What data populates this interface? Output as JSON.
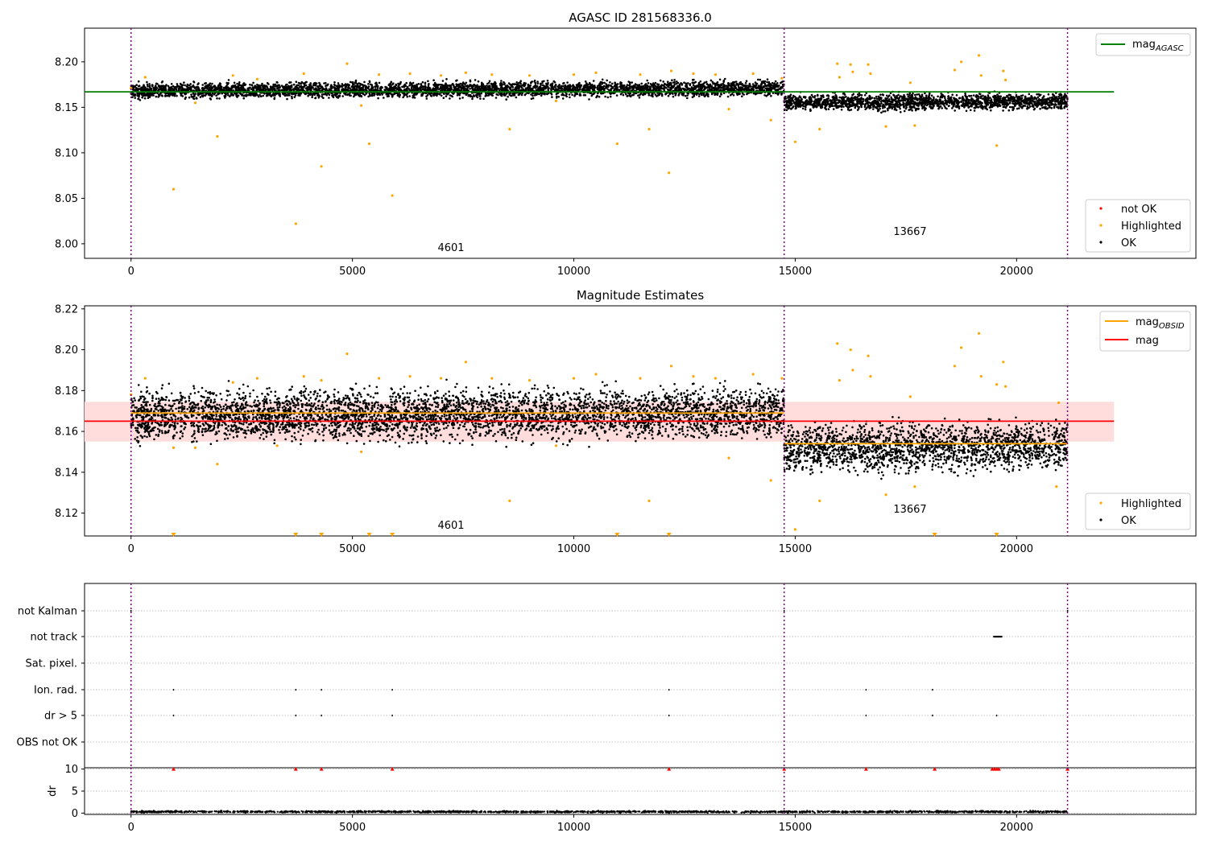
{
  "colors": {
    "ok": "#000000",
    "highlighted": "#ffa500",
    "not_ok": "#ff0000",
    "mag_agasc_line": "#008000",
    "mag_obsid_line": "#ffa500",
    "mag_line": "#ff0000",
    "mag_band": "#ffdddd",
    "obs_boundary": "#800080",
    "grid": "#b0b0b0"
  },
  "chart_data": [
    {
      "type": "scatter",
      "title": "AGASC ID 281568336.0",
      "xlim": [
        -1050,
        24050
      ],
      "ylim": [
        7.984,
        8.237
      ],
      "x_ticks": [
        0,
        5000,
        10000,
        15000,
        20000
      ],
      "y_ticks": [
        8.0,
        8.05,
        8.1,
        8.15,
        8.2
      ],
      "y_tick_labels": [
        "8.00",
        "8.05",
        "8.10",
        "8.15",
        "8.20"
      ],
      "obs_boundaries": [
        0,
        14750,
        21150
      ],
      "obs_labels": [
        {
          "text": "4601",
          "x": 7375,
          "y": 7.99
        },
        {
          "text": "13667",
          "x": 17950,
          "y": 8.012
        }
      ],
      "reference_lines": [
        {
          "name": "mag_AGASC",
          "y": 8.167,
          "x": [
            -1050,
            22200
          ]
        }
      ],
      "series": [
        {
          "name": "OK",
          "bands": [
            {
              "x": [
                0,
                14750
              ],
              "y_range": [
                8.156,
                8.18
              ],
              "rise": 0.003
            },
            {
              "x": [
                14750,
                21150
              ],
              "y_range": [
                8.143,
                8.168
              ],
              "rise": 0.001
            }
          ]
        },
        {
          "name": "Highlighted",
          "points": [
            [
              0,
              8.171
            ],
            [
              320,
              8.183
            ],
            [
              960,
              8.06
            ],
            [
              1450,
              8.155
            ],
            [
              1950,
              8.118
            ],
            [
              2300,
              8.185
            ],
            [
              2850,
              8.181
            ],
            [
              3720,
              8.022
            ],
            [
              3900,
              8.187
            ],
            [
              4300,
              8.085
            ],
            [
              4880,
              8.198
            ],
            [
              5200,
              8.152
            ],
            [
              5380,
              8.11
            ],
            [
              5600,
              8.186
            ],
            [
              5900,
              8.053
            ],
            [
              6300,
              8.187
            ],
            [
              7000,
              8.185
            ],
            [
              7560,
              8.188
            ],
            [
              8150,
              8.186
            ],
            [
              8550,
              8.126
            ],
            [
              9000,
              8.185
            ],
            [
              9600,
              8.157
            ],
            [
              10000,
              8.186
            ],
            [
              10500,
              8.188
            ],
            [
              10980,
              8.11
            ],
            [
              11500,
              8.186
            ],
            [
              11700,
              8.126
            ],
            [
              12150,
              8.078
            ],
            [
              12200,
              8.19
            ],
            [
              12700,
              8.187
            ],
            [
              13200,
              8.186
            ],
            [
              13500,
              8.148
            ],
            [
              14050,
              8.187
            ],
            [
              14450,
              8.136
            ],
            [
              14700,
              8.182
            ],
            [
              15000,
              8.112
            ],
            [
              15550,
              8.126
            ],
            [
              15950,
              8.198
            ],
            [
              16000,
              8.183
            ],
            [
              16250,
              8.197
            ],
            [
              16300,
              8.189
            ],
            [
              16650,
              8.197
            ],
            [
              16700,
              8.187
            ],
            [
              17050,
              8.129
            ],
            [
              17600,
              8.177
            ],
            [
              17700,
              8.13
            ],
            [
              18600,
              8.191
            ],
            [
              18750,
              8.2
            ],
            [
              19150,
              8.207
            ],
            [
              19200,
              8.185
            ],
            [
              19550,
              8.108
            ],
            [
              19700,
              8.19
            ],
            [
              19750,
              8.18
            ]
          ]
        },
        {
          "name": "not OK",
          "points": []
        }
      ],
      "legend_upper": {
        "entries": [
          "mag",
          "AGASC"
        ],
        "placement": "upper right"
      },
      "legend_lower": {
        "entries": [
          "not OK",
          "Highlighted",
          "OK"
        ],
        "placement": "lower right"
      }
    },
    {
      "type": "scatter",
      "title": "Magnitude Estimates",
      "xlim": [
        -1050,
        24050
      ],
      "ylim": [
        8.1088,
        8.2215
      ],
      "x_ticks": [
        0,
        5000,
        10000,
        15000,
        20000
      ],
      "y_ticks": [
        8.12,
        8.14,
        8.16,
        8.18,
        8.2,
        8.22
      ],
      "y_tick_labels": [
        "8.12",
        "8.14",
        "8.16",
        "8.18",
        "8.20",
        "8.22"
      ],
      "obs_boundaries": [
        0,
        14750,
        21150
      ],
      "obs_labels": [
        {
          "text": "4601",
          "x": 7375,
          "y": 8.112
        },
        {
          "text": "13667",
          "x": 17950,
          "y": 8.121
        }
      ],
      "band": {
        "y": [
          8.155,
          8.1745
        ],
        "x": [
          -1050,
          22200
        ]
      },
      "reference_lines": [
        {
          "name": "mag",
          "y": 8.165,
          "x": [
            -1050,
            22200
          ]
        },
        {
          "name": "mag_OBSID",
          "y": 8.169,
          "x": [
            0,
            14750
          ]
        },
        {
          "name": "mag_OBSID",
          "y": 8.154,
          "x": [
            14750,
            21150
          ]
        }
      ],
      "series": [
        {
          "name": "OK",
          "bands": [
            {
              "x": [
                0,
                14750
              ],
              "y_range": [
                8.15,
                8.185
              ],
              "rise": 0.002
            },
            {
              "x": [
                14750,
                21150
              ],
              "y_range": [
                8.135,
                8.168
              ],
              "rise": 0.002
            }
          ]
        },
        {
          "name": "Highlighted",
          "points": [
            [
              0,
              8.178
            ],
            [
              320,
              8.186
            ],
            [
              960,
              8.152
            ],
            [
              1450,
              8.152
            ],
            [
              1950,
              8.144
            ],
            [
              2300,
              8.184
            ],
            [
              2850,
              8.186
            ],
            [
              3300,
              8.153
            ],
            [
              3900,
              8.187
            ],
            [
              4300,
              8.185
            ],
            [
              4880,
              8.198
            ],
            [
              5200,
              8.15
            ],
            [
              5600,
              8.186
            ],
            [
              6300,
              8.187
            ],
            [
              7000,
              8.186
            ],
            [
              7560,
              8.194
            ],
            [
              8150,
              8.186
            ],
            [
              8550,
              8.126
            ],
            [
              9000,
              8.185
            ],
            [
              9600,
              8.153
            ],
            [
              10000,
              8.186
            ],
            [
              10500,
              8.188
            ],
            [
              11500,
              8.186
            ],
            [
              11700,
              8.126
            ],
            [
              12200,
              8.192
            ],
            [
              12700,
              8.187
            ],
            [
              13200,
              8.186
            ],
            [
              13500,
              8.147
            ],
            [
              14050,
              8.188
            ],
            [
              14450,
              8.136
            ],
            [
              14700,
              8.186
            ],
            [
              15000,
              8.112
            ],
            [
              15550,
              8.126
            ],
            [
              15950,
              8.203
            ],
            [
              16000,
              8.185
            ],
            [
              16250,
              8.2
            ],
            [
              16300,
              8.19
            ],
            [
              16650,
              8.197
            ],
            [
              16700,
              8.187
            ],
            [
              17050,
              8.129
            ],
            [
              17600,
              8.177
            ],
            [
              17700,
              8.133
            ],
            [
              18600,
              8.192
            ],
            [
              18750,
              8.201
            ],
            [
              19150,
              8.208
            ],
            [
              19200,
              8.187
            ],
            [
              19550,
              8.183
            ],
            [
              19700,
              8.194
            ],
            [
              19750,
              8.182
            ],
            [
              20900,
              8.133
            ],
            [
              20950,
              8.174
            ]
          ]
        },
        {
          "name": "Highlighted (below range)",
          "marker": "triangle_down",
          "points": [
            [
              960,
              8.1088
            ],
            [
              3720,
              8.1088
            ],
            [
              4300,
              8.1088
            ],
            [
              5380,
              8.1088
            ],
            [
              5900,
              8.1088
            ],
            [
              10980,
              8.1088
            ],
            [
              12150,
              8.1088
            ],
            [
              18150,
              8.1088
            ],
            [
              19550,
              8.1088
            ]
          ]
        }
      ],
      "legend_upper": {
        "entries": [
          "mag",
          "OBSID",
          "mag"
        ],
        "placement": "upper right"
      },
      "legend_lower": {
        "entries": [
          "Highlighted",
          "OK"
        ],
        "placement": "lower right"
      }
    },
    {
      "type": "scatter",
      "title": "",
      "xlim": [
        -1050,
        24050
      ],
      "categories": [
        "not Kalman",
        "not track",
        "Sat. pixel.",
        "Ion. rad.",
        "dr > 5",
        "OBS not OK"
      ],
      "obs_boundaries": [
        0,
        14750,
        21150
      ],
      "flag_points": {
        "not Kalman": [
          [
            0,
            1
          ],
          [
            14750,
            1
          ],
          [
            21150,
            1
          ]
        ],
        "not track": [
          [
            19500,
            2
          ],
          [
            19550,
            2
          ],
          [
            19600,
            2
          ],
          [
            19650,
            2
          ]
        ],
        "Sat. pixel.": [],
        "Ion. rad.": [
          [
            960,
            1
          ],
          [
            3720,
            1
          ],
          [
            4300,
            1
          ],
          [
            5900,
            1
          ],
          [
            12150,
            1
          ],
          [
            16600,
            1
          ],
          [
            18100,
            1
          ]
        ],
        "dr > 5": [
          [
            960,
            1
          ],
          [
            3720,
            1
          ],
          [
            4300,
            1
          ],
          [
            5900,
            1
          ],
          [
            12150,
            1
          ],
          [
            16600,
            1
          ],
          [
            18100,
            1
          ],
          [
            19550,
            1
          ]
        ],
        "OBS not OK": []
      }
    },
    {
      "type": "scatter",
      "title": "",
      "ylabel": "dr",
      "xlim": [
        -1050,
        24050
      ],
      "ylim": [
        -0.3,
        10.3
      ],
      "x_ticks": [
        0,
        5000,
        10000,
        15000,
        20000
      ],
      "y_ticks": [
        0,
        5,
        10
      ],
      "obs_boundaries": [
        0,
        14750,
        21150
      ],
      "series": [
        {
          "name": "OK",
          "bands": [
            {
              "x": [
                0,
                21150
              ],
              "y_range": [
                0.0,
                0.6
              ],
              "rise": 0
            }
          ]
        },
        {
          "name": "not OK",
          "marker": "triangle_up",
          "points": [
            [
              960,
              10
            ],
            [
              3720,
              10
            ],
            [
              4300,
              10
            ],
            [
              5900,
              10
            ],
            [
              12150,
              10
            ],
            [
              14750,
              10
            ],
            [
              16600,
              10
            ],
            [
              18150,
              10
            ],
            [
              19450,
              10
            ],
            [
              19500,
              10
            ],
            [
              19550,
              10
            ],
            [
              19600,
              10
            ],
            [
              21150,
              10
            ]
          ]
        }
      ]
    }
  ]
}
